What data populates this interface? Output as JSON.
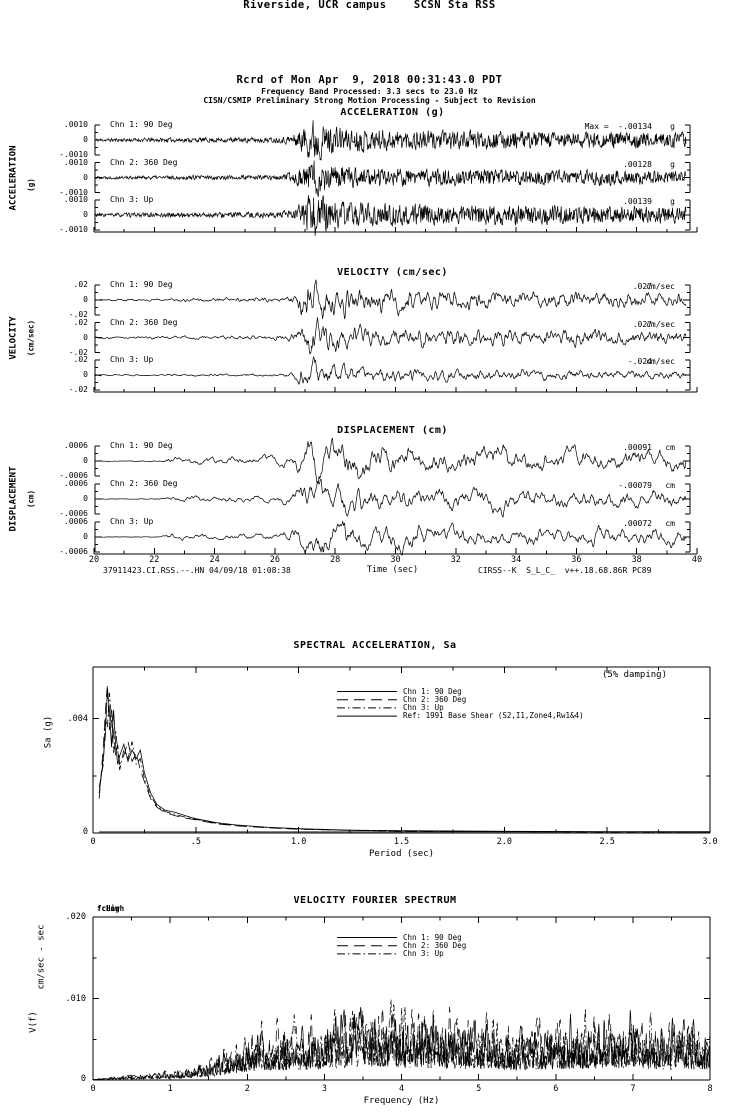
{
  "page": {
    "background": "#ffffff",
    "ink": "#000000"
  },
  "header": {
    "line1": "Riverside, UCR campus    SCSN Sta RSS",
    "line2": "Rcrd of Mon Apr  9, 2018 00:31:43.0 PDT",
    "line3": "Frequency Band Processed: 3.3 secs to 23.0 Hz",
    "line4": "CISN/CSMIP Preliminary Strong Motion Processing - Subject to Revision"
  },
  "footer": {
    "left": "37911423.CI.RSS.--.HN 04/09/18 01:08:38",
    "right": "CIRSS--K  S_L_C_  v++.18.68.86R PC89"
  },
  "chart_data": [
    {
      "type": "line",
      "id": "acceleration_time_series",
      "title": "ACCELERATION (g)",
      "ylabel": "ACCELERATION",
      "yunits": "(g)",
      "xlim": [
        20,
        40
      ],
      "yscale": 0.001,
      "ytick_labels": [
        ".0010",
        "0",
        "-.0010"
      ],
      "channels": [
        {
          "label": "Chn 1: 90 Deg",
          "peak": -0.00134,
          "peak_label": "Max =  -.00134",
          "unit": "g",
          "seed": 11
        },
        {
          "label": "Chn 2: 360 Deg",
          "peak": 0.00128,
          "peak_label": ".00128",
          "unit": "g",
          "seed": 22
        },
        {
          "label": "Chn 3: Up",
          "peak": 0.00139,
          "peak_label": ".00139",
          "unit": "g",
          "seed": 33
        }
      ],
      "texture": {
        "leak": 0.25,
        "smooth": 0
      },
      "envelope": [
        [
          20,
          0.07
        ],
        [
          23,
          0.1
        ],
        [
          26.2,
          0.12
        ],
        [
          26.6,
          0.25
        ],
        [
          27.0,
          0.6
        ],
        [
          27.3,
          1.0
        ],
        [
          27.8,
          0.62
        ],
        [
          28.5,
          0.5
        ],
        [
          30,
          0.45
        ],
        [
          32,
          0.4
        ],
        [
          35,
          0.37
        ],
        [
          40,
          0.33
        ]
      ]
    },
    {
      "type": "line",
      "id": "velocity_time_series",
      "title": "VELOCITY (cm/sec)",
      "ylabel": "VELOCITY",
      "yunits": "(cm/sec)",
      "xlim": [
        20,
        40
      ],
      "yscale": 0.02,
      "ytick_labels": [
        ".02",
        "0",
        "-.02"
      ],
      "channels": [
        {
          "label": "Chn 1: 90 Deg",
          "peak": 0.027,
          "peak_label": ".027",
          "unit": "cm/sec",
          "seed": 44
        },
        {
          "label": "Chn 2: 360 Deg",
          "peak": 0.027,
          "peak_label": ".027",
          "unit": "cm/sec",
          "seed": 55
        },
        {
          "label": "Chn 3: Up",
          "peak": -0.024,
          "peak_label": "-.024",
          "unit": "cm/sec",
          "seed": 66
        }
      ],
      "texture": {
        "leak": 0.7,
        "smooth": 1
      },
      "envelope": [
        [
          20,
          0.05
        ],
        [
          22.5,
          0.06
        ],
        [
          23,
          0.08
        ],
        [
          26.2,
          0.1
        ],
        [
          26.7,
          0.3
        ],
        [
          27.1,
          1.0
        ],
        [
          27.9,
          0.75
        ],
        [
          29,
          0.5
        ],
        [
          31,
          0.42
        ],
        [
          34,
          0.36
        ],
        [
          37,
          0.32
        ],
        [
          40,
          0.28
        ]
      ]
    },
    {
      "type": "line",
      "id": "displacement_time_series",
      "title": "DISPLACEMENT (cm)",
      "ylabel": "DISPLACEMENT",
      "yunits": "(cm)",
      "xlabel": "Time (sec)",
      "xlim": [
        20,
        40
      ],
      "xticks": [
        20,
        22,
        24,
        26,
        28,
        30,
        32,
        34,
        36,
        38,
        40
      ],
      "yscale": 0.0006,
      "ytick_labels": [
        ".0006",
        "0",
        "-.0006"
      ],
      "channels": [
        {
          "label": "Chn 1: 90 Deg",
          "peak": 0.00091,
          "peak_label": ".00091",
          "unit": "cm",
          "seed": 77
        },
        {
          "label": "Chn 2: 360 Deg",
          "peak": -0.00079,
          "peak_label": "-.00079",
          "unit": "cm",
          "seed": 88
        },
        {
          "label": "Chn 3: Up",
          "peak": 0.00072,
          "peak_label": ".00072",
          "unit": "cm",
          "seed": 99
        }
      ],
      "texture": {
        "leak": 0.88,
        "smooth": 1
      },
      "envelope": [
        [
          20,
          0.015
        ],
        [
          22.2,
          0.02
        ],
        [
          22.5,
          0.15
        ],
        [
          26.2,
          0.18
        ],
        [
          26.8,
          0.5
        ],
        [
          27.3,
          1.0
        ],
        [
          28.2,
          0.75
        ],
        [
          29.5,
          0.62
        ],
        [
          31,
          0.56
        ],
        [
          34,
          0.5
        ],
        [
          37,
          0.47
        ],
        [
          40,
          0.44
        ]
      ]
    },
    {
      "type": "line",
      "id": "spectral_acceleration",
      "title": "SPECTRAL ACCELERATION, Sa",
      "annotation": "(5% damping)",
      "xlabel": "Period (sec)",
      "ylabel": "Sa (g)",
      "xlim": [
        0,
        3
      ],
      "ylim": [
        0,
        0.0058
      ],
      "xticks": [
        0,
        0.5,
        1.0,
        1.5,
        2.0,
        2.5,
        3.0
      ],
      "xtick_labels": [
        "0",
        ".5",
        "1.0",
        "1.5",
        "2.0",
        "2.5",
        "3.0"
      ],
      "ytick_vals": [
        0,
        0.004
      ],
      "ytick_labels": [
        "0",
        ".004"
      ],
      "y_minor": [
        0.002
      ],
      "legend": [
        {
          "name": "Chn 1: 90 Deg",
          "dash": "solid"
        },
        {
          "name": "Chn 2: 360 Deg",
          "dash": "long-dash"
        },
        {
          "name": "Chn 3: Up",
          "dash": "dash-dot"
        },
        {
          "name": "Ref: 1991 Base Shear (S2,I1,Zone4,Rw1&4)",
          "dash": "solid"
        }
      ],
      "series": [
        {
          "name": "Chn 1: 90 Deg",
          "dash": "solid",
          "points": [
            [
              0.03,
              0.0014
            ],
            [
              0.05,
              0.0026
            ],
            [
              0.06,
              0.0034
            ],
            [
              0.07,
              0.005
            ],
            [
              0.08,
              0.0043
            ],
            [
              0.09,
              0.003
            ],
            [
              0.1,
              0.0043
            ],
            [
              0.11,
              0.0031
            ],
            [
              0.12,
              0.0024
            ],
            [
              0.13,
              0.0027
            ],
            [
              0.15,
              0.0031
            ],
            [
              0.17,
              0.0025
            ],
            [
              0.19,
              0.0029
            ],
            [
              0.21,
              0.0026
            ],
            [
              0.23,
              0.0029
            ],
            [
              0.25,
              0.0021
            ],
            [
              0.28,
              0.0014
            ],
            [
              0.31,
              0.001
            ],
            [
              0.35,
              0.0008
            ],
            [
              0.4,
              0.00072
            ],
            [
              0.45,
              0.0006
            ],
            [
              0.5,
              0.0005
            ],
            [
              0.6,
              0.00036
            ],
            [
              0.7,
              0.00028
            ],
            [
              0.85,
              0.0002
            ],
            [
              1.0,
              0.00015
            ],
            [
              1.25,
              0.0001
            ],
            [
              1.5,
              8e-05
            ],
            [
              2.0,
              6e-05
            ],
            [
              2.5,
              5e-05
            ],
            [
              3.0,
              5e-05
            ]
          ]
        },
        {
          "name": "Chn 2: 360 Deg",
          "dash": "long-dash",
          "points": [
            [
              0.03,
              0.0012
            ],
            [
              0.05,
              0.003
            ],
            [
              0.06,
              0.0042
            ],
            [
              0.07,
              0.0052
            ],
            [
              0.08,
              0.0036
            ],
            [
              0.09,
              0.0044
            ],
            [
              0.1,
              0.0034
            ],
            [
              0.11,
              0.0027
            ],
            [
              0.12,
              0.0031
            ],
            [
              0.13,
              0.0024
            ],
            [
              0.15,
              0.0027
            ],
            [
              0.17,
              0.0032
            ],
            [
              0.19,
              0.0025
            ],
            [
              0.21,
              0.0028
            ],
            [
              0.23,
              0.0022
            ],
            [
              0.25,
              0.0018
            ],
            [
              0.28,
              0.0012
            ],
            [
              0.31,
              0.0009
            ],
            [
              0.35,
              0.00072
            ],
            [
              0.4,
              0.0006
            ],
            [
              0.45,
              0.00052
            ],
            [
              0.5,
              0.00046
            ],
            [
              0.6,
              0.00032
            ],
            [
              0.7,
              0.00025
            ],
            [
              0.85,
              0.00018
            ],
            [
              1.0,
              0.00013
            ],
            [
              1.25,
              9e-05
            ],
            [
              1.5,
              7e-05
            ],
            [
              2.0,
              5e-05
            ],
            [
              2.5,
              4e-05
            ],
            [
              3.0,
              4e-05
            ]
          ]
        },
        {
          "name": "Chn 3: Up",
          "dash": "dash-dot",
          "points": [
            [
              0.03,
              0.0016
            ],
            [
              0.05,
              0.0024
            ],
            [
              0.06,
              0.004
            ],
            [
              0.07,
              0.0037
            ],
            [
              0.08,
              0.0049
            ],
            [
              0.09,
              0.004
            ],
            [
              0.1,
              0.0028
            ],
            [
              0.11,
              0.0036
            ],
            [
              0.12,
              0.0029
            ],
            [
              0.13,
              0.0022
            ],
            [
              0.15,
              0.0029
            ],
            [
              0.17,
              0.0026
            ],
            [
              0.19,
              0.0032
            ],
            [
              0.21,
              0.0024
            ],
            [
              0.23,
              0.0026
            ],
            [
              0.25,
              0.0019
            ],
            [
              0.28,
              0.0013
            ],
            [
              0.31,
              0.00095
            ],
            [
              0.35,
              0.00075
            ],
            [
              0.4,
              0.00065
            ],
            [
              0.45,
              0.00055
            ],
            [
              0.5,
              0.00048
            ],
            [
              0.6,
              0.00034
            ],
            [
              0.7,
              0.00026
            ],
            [
              0.85,
              0.00019
            ],
            [
              1.0,
              0.00014
            ],
            [
              1.25,
              9e-05
            ],
            [
              1.5,
              7e-05
            ],
            [
              2.0,
              5e-05
            ],
            [
              2.5,
              4e-05
            ],
            [
              3.0,
              4e-05
            ]
          ]
        },
        {
          "name": "Ref: 1991 Base Shear (S2,I1,Zone4,Rw1&4)",
          "dash": "solid",
          "points": [
            [
              0.03,
              4e-05
            ],
            [
              3.0,
              4e-05
            ]
          ]
        }
      ]
    },
    {
      "type": "line",
      "id": "velocity_fourier_spectrum",
      "title": "VELOCITY FOURIER SPECTRUM",
      "xlabel": "Frequency (Hz)",
      "ylabel": "V(f)",
      "yunits": "cm/sec - sec",
      "corner_labels": [
        "fcLow",
        "fcHigh"
      ],
      "xlim": [
        0,
        8
      ],
      "ylim": [
        0,
        0.02
      ],
      "xticks": [
        0,
        1,
        2,
        3,
        4,
        5,
        6,
        7,
        8
      ],
      "ytick_vals": [
        0,
        0.01,
        0.02
      ],
      "ytick_labels": [
        "0",
        ".010",
        ".020"
      ],
      "y_minor": [
        0.005,
        0.015
      ],
      "peak_value": 0.011,
      "legend": [
        {
          "name": "Chn 1: 90 Deg",
          "dash": "solid"
        },
        {
          "name": "Chn 2: 360 Deg",
          "dash": "long-dash"
        },
        {
          "name": "Chn 3: Up",
          "dash": "dash-dot"
        }
      ],
      "series": [
        {
          "name": "Chn 1: 90 Deg",
          "dash": "solid",
          "seed": 7
        },
        {
          "name": "Chn 2: 360 Deg",
          "dash": "long-dash",
          "seed": 8
        },
        {
          "name": "Chn 3: Up",
          "dash": "dash-dot",
          "seed": 9
        }
      ],
      "envelope": [
        [
          0,
          8e-05
        ],
        [
          0.3,
          0.0003
        ],
        [
          0.7,
          0.0005
        ],
        [
          1.0,
          0.0007
        ],
        [
          1.3,
          0.0012
        ],
        [
          1.6,
          0.002
        ],
        [
          1.9,
          0.0035
        ],
        [
          2.2,
          0.0048
        ],
        [
          2.5,
          0.0046
        ],
        [
          2.8,
          0.005
        ],
        [
          3.1,
          0.0055
        ],
        [
          3.4,
          0.0062
        ],
        [
          3.7,
          0.0068
        ],
        [
          4.0,
          0.006
        ],
        [
          4.3,
          0.0056
        ],
        [
          4.7,
          0.0052
        ],
        [
          5.0,
          0.0055
        ],
        [
          5.4,
          0.0048
        ],
        [
          5.8,
          0.005
        ],
        [
          6.2,
          0.0052
        ],
        [
          6.6,
          0.0056
        ],
        [
          7.0,
          0.006
        ],
        [
          7.4,
          0.0047
        ],
        [
          7.7,
          0.005
        ],
        [
          8.0,
          0.0052
        ]
      ]
    }
  ]
}
